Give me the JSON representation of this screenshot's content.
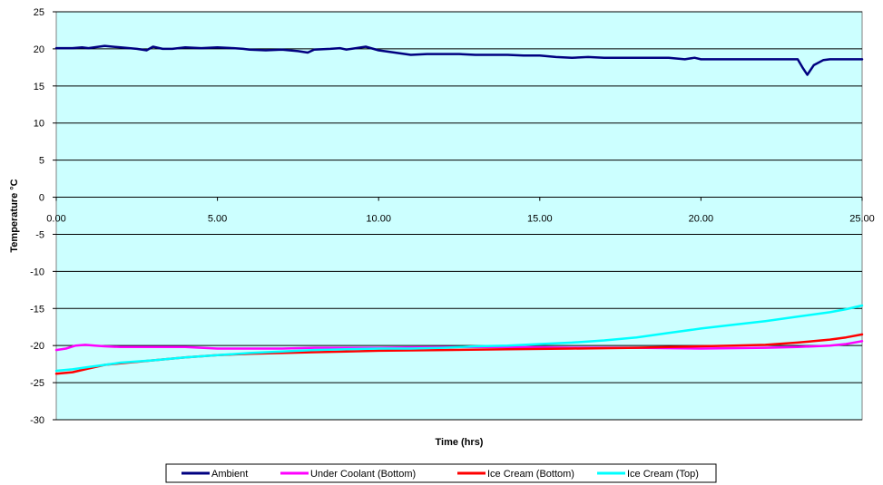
{
  "chart_data": {
    "type": "line",
    "xlabel": "Time (hrs)",
    "ylabel": "Temperature °C",
    "xlim": [
      0,
      25
    ],
    "ylim": [
      -30,
      25
    ],
    "x_ticks": [
      "0.00",
      "5.00",
      "10.00",
      "15.00",
      "20.00",
      "25.00"
    ],
    "y_ticks": [
      "25",
      "20",
      "15",
      "10",
      "5",
      "0",
      "-5",
      "-10",
      "-15",
      "-20",
      "-25",
      "-30"
    ],
    "grid": "horizontal",
    "plot_background": "#ccffff",
    "legend_position": "bottom",
    "series": [
      {
        "name": "Ambient",
        "color": "#000080",
        "x": [
          0,
          0.5,
          0.8,
          1.0,
          1.5,
          2.0,
          2.5,
          2.8,
          3.0,
          3.3,
          3.6,
          4.0,
          4.5,
          5.0,
          5.5,
          5.8,
          6.0,
          6.5,
          7.0,
          7.5,
          7.8,
          8.0,
          8.5,
          8.8,
          9.0,
          9.3,
          9.6,
          10.0,
          10.5,
          11.0,
          11.5,
          12.0,
          12.5,
          13.0,
          13.5,
          14.0,
          14.5,
          15.0,
          15.5,
          16.0,
          16.5,
          17.0,
          18.0,
          19.0,
          19.5,
          19.8,
          20.0,
          21.0,
          22.0,
          22.7,
          23.0,
          23.15,
          23.3,
          23.5,
          23.8,
          24.0,
          25.0
        ],
        "values": [
          20.1,
          20.1,
          20.2,
          20.1,
          20.4,
          20.2,
          20.0,
          19.8,
          20.3,
          20.0,
          20.0,
          20.2,
          20.1,
          20.2,
          20.1,
          20.0,
          19.9,
          19.8,
          19.9,
          19.7,
          19.5,
          19.9,
          20.0,
          20.1,
          19.9,
          20.1,
          20.3,
          19.8,
          19.5,
          19.2,
          19.3,
          19.3,
          19.3,
          19.2,
          19.2,
          19.2,
          19.1,
          19.1,
          18.9,
          18.8,
          18.9,
          18.8,
          18.8,
          18.8,
          18.6,
          18.8,
          18.6,
          18.6,
          18.6,
          18.6,
          18.6,
          17.5,
          16.5,
          17.8,
          18.5,
          18.6,
          18.6
        ]
      },
      {
        "name": "Under Coolant (Bottom)",
        "color": "#ff00ff",
        "x": [
          0,
          0.3,
          0.6,
          0.9,
          1.2,
          1.5,
          2.0,
          3.0,
          4.0,
          4.5,
          5.0,
          7.0,
          8.0,
          9.0,
          10.0,
          12.0,
          14.0,
          16.0,
          18.0,
          20.0,
          22.0,
          23.0,
          24.0,
          24.5,
          25.0
        ],
        "values": [
          -20.6,
          -20.4,
          -20.0,
          -19.9,
          -20.0,
          -20.1,
          -20.2,
          -20.2,
          -20.2,
          -20.3,
          -20.4,
          -20.4,
          -20.3,
          -20.3,
          -20.3,
          -20.2,
          -20.2,
          -20.3,
          -20.3,
          -20.4,
          -20.3,
          -20.2,
          -20.0,
          -19.8,
          -19.4
        ]
      },
      {
        "name": "Ice Cream (Bottom)",
        "color": "#ff0000",
        "x": [
          0,
          0.5,
          1.0,
          1.5,
          2.0,
          3.0,
          4.0,
          5.0,
          6.0,
          7.0,
          8.0,
          9.0,
          10.0,
          12.0,
          14.0,
          16.0,
          18.0,
          19.0,
          20.0,
          21.0,
          22.0,
          23.0,
          23.5,
          24.0,
          24.5,
          25.0
        ],
        "values": [
          -23.8,
          -23.6,
          -23.1,
          -22.6,
          -22.4,
          -22.0,
          -21.6,
          -21.3,
          -21.1,
          -21.0,
          -20.9,
          -20.8,
          -20.7,
          -20.6,
          -20.5,
          -20.4,
          -20.3,
          -20.2,
          -20.1,
          -20.0,
          -19.9,
          -19.6,
          -19.4,
          -19.2,
          -18.9,
          -18.5
        ]
      },
      {
        "name": "Ice Cream (Top)",
        "color": "#00ffff",
        "x": [
          0,
          0.5,
          1.0,
          1.5,
          2.0,
          3.0,
          4.0,
          5.0,
          6.0,
          7.0,
          8.0,
          9.0,
          10.0,
          11.0,
          12.0,
          13.0,
          14.0,
          15.0,
          16.0,
          17.0,
          18.0,
          19.0,
          20.0,
          21.0,
          22.0,
          23.0,
          24.0,
          24.5,
          25.0
        ],
        "values": [
          -23.4,
          -23.2,
          -22.9,
          -22.6,
          -22.3,
          -22.0,
          -21.6,
          -21.3,
          -21.0,
          -20.8,
          -20.6,
          -20.5,
          -20.4,
          -20.4,
          -20.3,
          -20.1,
          -20.0,
          -19.8,
          -19.6,
          -19.3,
          -18.9,
          -18.3,
          -17.7,
          -17.2,
          -16.7,
          -16.1,
          -15.5,
          -15.1,
          -14.6
        ]
      }
    ]
  }
}
